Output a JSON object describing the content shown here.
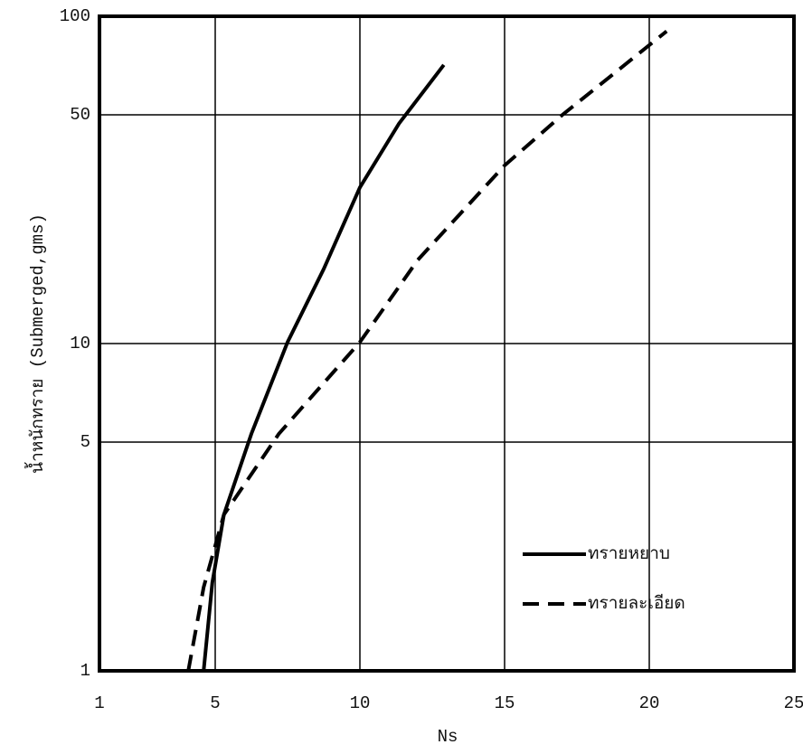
{
  "chart_data": {
    "type": "line",
    "x_label": "Ns",
    "y_label": "น้ำหนักทราย (Submerged,gms)",
    "xlim": [
      1,
      25
    ],
    "xticks": [
      1,
      5,
      10,
      15,
      20,
      25
    ],
    "ylim": [
      1,
      100
    ],
    "yticks": [
      1,
      5,
      10,
      50,
      100
    ],
    "y_scale": "log",
    "grid": true,
    "legend": "lower right",
    "series": [
      {
        "name": "ทรายหยาบ",
        "color": "#000000",
        "dash": "solid",
        "x": [
          4.6,
          4.9,
          5.3,
          6.25,
          7.5,
          8.75,
          10,
          11.35,
          12.9
        ],
        "values": [
          1,
          1.86,
          3.0,
          5.3,
          10.1,
          16.9,
          30,
          47,
          71
        ]
      },
      {
        "name": "ทรายละเอียด",
        "color": "#000000",
        "dash": "dashed",
        "x": [
          4.07,
          4.6,
          5.3,
          7.2,
          10,
          12,
          15,
          17,
          20.6
        ],
        "values": [
          1,
          1.8,
          3.0,
          5.3,
          10.1,
          18,
          35,
          50,
          90
        ]
      }
    ]
  }
}
